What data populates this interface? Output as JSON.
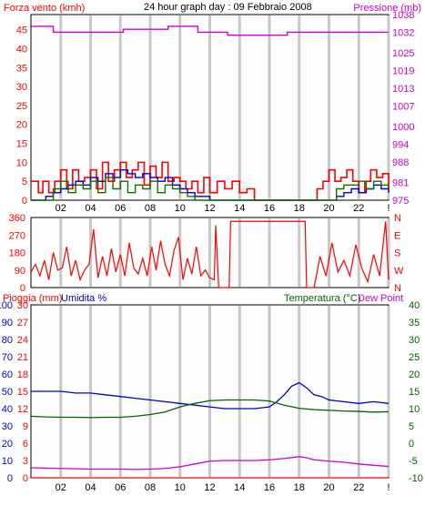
{
  "colors": {
    "wind_speed": "#ff0000",
    "wind_gust": "#1a6e00",
    "wind_avg": "#0000cc",
    "pressure": "#d000d0",
    "direction": "#ff0000",
    "rain": "#ff0000",
    "humidity": "#0000cc",
    "temperature": "#006400",
    "dew_point": "#d000d0",
    "grid": "#c8c8c8",
    "panel_bg": "#fdfdfd"
  },
  "chart_data": [
    {
      "type": "line",
      "title": "24 hour graph day : 09 Febbraio 2008",
      "left_label": "Forza vento (kmh)",
      "right_label": "Pressione (mb)",
      "x_ticks": [
        "02",
        "04",
        "06",
        "08",
        "10",
        "12",
        "14",
        "16",
        "18",
        "20",
        "22",
        "!"
      ],
      "y_left_ticks": [
        "0",
        "5",
        "10",
        "15",
        "20",
        "25",
        "30",
        "35",
        "40",
        "45"
      ],
      "y_right_ticks": [
        "975",
        "981",
        "988",
        "994",
        "1000",
        "1007",
        "1013",
        "1019",
        "1025",
        "1032",
        "1038"
      ],
      "xlim": [
        0,
        24
      ],
      "ylim_left": [
        0,
        49
      ],
      "ylim_right": [
        975,
        1038
      ],
      "series": [
        {
          "key": "wind_speed",
          "x": [
            0,
            0.5,
            0.8,
            1.2,
            1.6,
            2.0,
            2.4,
            2.8,
            3.2,
            3.6,
            4.0,
            4.4,
            4.8,
            5.2,
            5.6,
            6.0,
            6.4,
            6.8,
            7.2,
            7.6,
            8.0,
            8.4,
            8.8,
            9.2,
            9.6,
            10.0,
            10.4,
            10.8,
            11.2,
            11.6,
            12.0,
            12.5,
            13.0,
            13.5,
            14.0,
            14.5,
            15.0,
            16.0,
            18.0,
            19.2,
            19.6,
            20.0,
            20.4,
            20.8,
            21.2,
            21.6,
            22.0,
            22.4,
            22.8,
            23.2,
            23.6,
            24.0
          ],
          "y": [
            5,
            2,
            5,
            2,
            5,
            8,
            3,
            8,
            5,
            6,
            8,
            3,
            10,
            5,
            8,
            10,
            6,
            8,
            10,
            4,
            9,
            6,
            10,
            5,
            6,
            5,
            3,
            5,
            2,
            6,
            2,
            5,
            3,
            5,
            2,
            3,
            0,
            0,
            0,
            3,
            5,
            8,
            5,
            6,
            8,
            5,
            2,
            5,
            8,
            6,
            7,
            3
          ]
        },
        {
          "key": "wind_avg",
          "x": [
            0,
            1.0,
            1.5,
            2.0,
            2.5,
            3.0,
            3.5,
            4.0,
            4.5,
            5.0,
            5.5,
            6.0,
            6.5,
            7.0,
            7.5,
            8.0,
            8.5,
            9.0,
            9.5,
            10.0,
            10.5,
            11.0,
            12.0,
            20.0,
            20.5,
            21.0,
            21.5,
            22.0,
            22.5,
            23.0,
            23.5,
            24.0
          ],
          "y": [
            0,
            1,
            2,
            3,
            4,
            5,
            4,
            6,
            5,
            7,
            6,
            8,
            7,
            6,
            7,
            6,
            5,
            6,
            4,
            3,
            2,
            1,
            0,
            0,
            1,
            2,
            3,
            2,
            3,
            4,
            3,
            2
          ]
        },
        {
          "key": "wind_gust",
          "x": [
            0,
            1.5,
            2.0,
            2.5,
            3.0,
            3.5,
            4.0,
            4.5,
            5.0,
            5.5,
            6.0,
            6.5,
            7.0,
            7.5,
            8.0,
            8.5,
            9.0,
            9.5,
            10.0,
            10.5,
            11.0,
            12.0,
            19.8,
            20.5,
            21.0,
            22.0,
            22.5,
            23.0,
            23.5,
            24.0
          ],
          "y": [
            0,
            3,
            5,
            2,
            4,
            3,
            5,
            2,
            6,
            3,
            5,
            2,
            4,
            3,
            5,
            2,
            4,
            3,
            2,
            1,
            0,
            0,
            0,
            3,
            4,
            5,
            3,
            5,
            4,
            3
          ]
        },
        {
          "key": "pressure",
          "x": [
            0,
            1.3,
            1.5,
            6.0,
            6.2,
            9.0,
            9.2,
            11.0,
            11.2,
            13.0,
            13.2,
            17.0,
            17.2,
            19.5,
            19.7,
            24.0
          ],
          "y": [
            1034,
            1034,
            1032,
            1032,
            1033,
            1033,
            1034,
            1034,
            1032,
            1032,
            1031,
            1031,
            1032,
            1032,
            1032,
            1032
          ]
        }
      ]
    },
    {
      "type": "line",
      "left_label": "",
      "y_left_ticks": [
        "0",
        "90",
        "180",
        "270",
        "360"
      ],
      "y_right_ticks": [
        "N",
        "W",
        "S",
        "E",
        "N"
      ],
      "xlim": [
        0,
        24
      ],
      "ylim_left": [
        0,
        360
      ],
      "series": [
        {
          "key": "direction",
          "x": [
            0,
            0.3,
            0.6,
            0.9,
            1.2,
            1.5,
            1.8,
            2.1,
            2.4,
            2.7,
            3.0,
            3.3,
            3.6,
            3.9,
            4.2,
            4.5,
            4.8,
            5.1,
            5.4,
            5.7,
            6.0,
            6.3,
            6.6,
            6.9,
            7.2,
            7.5,
            7.8,
            8.1,
            8.4,
            8.7,
            9.0,
            9.3,
            9.6,
            9.9,
            10.2,
            10.5,
            10.8,
            11.1,
            11.4,
            11.7,
            12.0,
            12.3,
            12.4,
            12.6,
            12.8,
            13.3,
            13.4,
            18.4,
            18.5,
            19.0,
            19.4,
            19.8,
            20.2,
            20.6,
            21.0,
            21.4,
            21.8,
            22.2,
            22.6,
            23.0,
            23.4,
            23.8,
            24.0
          ],
          "y": [
            80,
            120,
            60,
            140,
            40,
            180,
            90,
            100,
            210,
            60,
            140,
            40,
            90,
            120,
            300,
            50,
            160,
            60,
            200,
            80,
            170,
            60,
            230,
            100,
            70,
            150,
            60,
            210,
            90,
            240,
            120,
            60,
            190,
            260,
            40,
            150,
            70,
            210,
            60,
            90,
            50,
            40,
            320,
            0,
            0,
            0,
            340,
            340,
            0,
            0,
            160,
            60,
            230,
            80,
            140,
            60,
            220,
            100,
            30,
            170,
            60,
            340,
            40
          ]
        }
      ]
    },
    {
      "type": "line",
      "left_label": "Pioggia (mm)",
      "left_label_2": "Umidita %",
      "right_label": "Temperatura (°C)",
      "right_label_2": "Dew Point",
      "x_ticks": [
        "02",
        "04",
        "06",
        "08",
        "10",
        "12",
        "14",
        "16",
        "18",
        "20",
        "22",
        "!"
      ],
      "y_rain_ticks": [
        "0",
        "3",
        "6",
        "9",
        "12",
        "15",
        "18",
        "21",
        "24",
        "27",
        "30"
      ],
      "y_humidity_ticks": [
        "0",
        "10",
        "20",
        "30",
        "40",
        "50",
        "60",
        "70",
        "80",
        "90",
        "100"
      ],
      "y_temp_ticks": [
        "-10",
        "-5",
        "0",
        "5",
        "10",
        "15",
        "20",
        "25",
        "30",
        "35",
        "40"
      ],
      "xlim": [
        0,
        24
      ],
      "ylim_humidity": [
        0,
        100
      ],
      "ylim_temp": [
        -10,
        40
      ],
      "ylim_rain": [
        0,
        30
      ],
      "series": [
        {
          "key": "rain",
          "x": [
            0,
            24
          ],
          "y": [
            0,
            0
          ]
        },
        {
          "key": "humidity",
          "x": [
            0,
            1,
            2,
            3,
            4,
            5,
            6,
            7,
            8,
            9,
            10,
            11,
            12,
            13,
            14,
            15,
            16,
            16.5,
            17,
            17.5,
            18,
            18.5,
            19,
            19.5,
            20,
            21,
            22,
            23,
            24
          ],
          "y": [
            50,
            50,
            50,
            49,
            49,
            48,
            47,
            46,
            45,
            44,
            43,
            42,
            41,
            40,
            40,
            40,
            41,
            44,
            48,
            53,
            55,
            52,
            48,
            47,
            45,
            44,
            43,
            44,
            43
          ]
        },
        {
          "key": "temperature",
          "x": [
            0,
            1,
            2,
            3,
            4,
            5,
            6,
            7,
            8,
            9,
            10,
            11,
            12,
            13,
            14,
            15,
            16,
            17,
            18,
            19,
            20,
            21,
            22,
            23,
            24
          ],
          "y": [
            7.8,
            7.6,
            7.5,
            7.5,
            7.4,
            7.5,
            7.5,
            7.8,
            8.3,
            9.0,
            10.5,
            11.5,
            12.3,
            12.5,
            12.5,
            12.5,
            12.2,
            11.0,
            10.1,
            9.7,
            9.5,
            9.3,
            9.2,
            9.0,
            9.1
          ]
        },
        {
          "key": "dew_point",
          "x": [
            0,
            1,
            2,
            3,
            4,
            5,
            6,
            7,
            8,
            9,
            10,
            11,
            12,
            13,
            14,
            15,
            16,
            17,
            18,
            18.5,
            19,
            20,
            21,
            22,
            23,
            24
          ],
          "y": [
            -7.1,
            -7.2,
            -7.3,
            -7.4,
            -7.5,
            -7.5,
            -7.5,
            -7.6,
            -7.5,
            -7.3,
            -6.8,
            -6.0,
            -5.2,
            -5.0,
            -5.0,
            -5.0,
            -4.8,
            -4.4,
            -3.9,
            -4.2,
            -4.8,
            -5.2,
            -5.5,
            -6.0,
            -6.4,
            -6.7
          ]
        }
      ]
    }
  ]
}
